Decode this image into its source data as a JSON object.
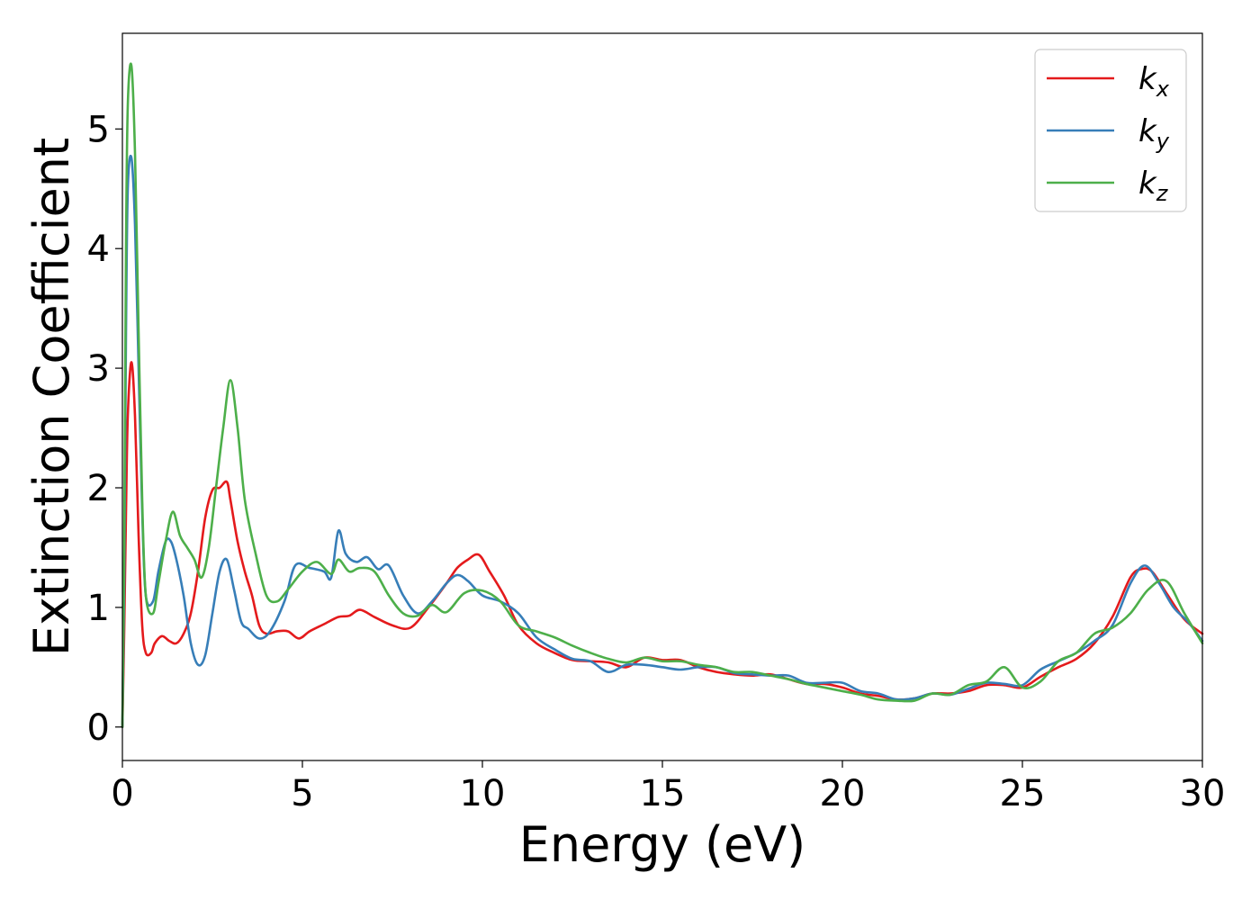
{
  "chart_data": {
    "type": "line",
    "title": "",
    "xlabel": "Energy (eV)",
    "ylabel": "Extinction Coefficient",
    "xlim": [
      0,
      30
    ],
    "ylim": [
      -0.28,
      5.8
    ],
    "xticks": [
      0,
      5,
      10,
      15,
      20,
      25,
      30
    ],
    "yticks": [
      0,
      1,
      2,
      3,
      4,
      5
    ],
    "grid": false,
    "legend_position": "top-right",
    "series": [
      {
        "name": "k",
        "subscript": "x",
        "color": "#e41a1c",
        "x": [
          0,
          0.05,
          0.1,
          0.15,
          0.25,
          0.35,
          0.45,
          0.55,
          0.65,
          0.8,
          0.9,
          1.1,
          1.3,
          1.5,
          1.7,
          1.9,
          2.1,
          2.3,
          2.5,
          2.7,
          2.9,
          3.0,
          3.2,
          3.4,
          3.6,
          3.8,
          4.0,
          4.3,
          4.6,
          4.9,
          5.2,
          5.6,
          6.0,
          6.3,
          6.6,
          7.0,
          7.5,
          8.0,
          8.5,
          9.0,
          9.3,
          9.6,
          9.9,
          10.2,
          10.6,
          11.0,
          11.5,
          12.0,
          12.5,
          13.0,
          13.5,
          14.0,
          14.5,
          15.0,
          15.5,
          16.0,
          16.5,
          17.0,
          17.5,
          18.0,
          18.5,
          19.0,
          19.5,
          20.0,
          20.5,
          21.0,
          21.5,
          22.0,
          22.5,
          23.0,
          23.5,
          24.0,
          24.5,
          25.0,
          25.5,
          26.0,
          26.5,
          27.0,
          27.5,
          28.0,
          28.3,
          28.6,
          29.0,
          29.5,
          30.0
        ],
        "y": [
          0,
          0.8,
          1.8,
          2.6,
          3.05,
          2.6,
          1.6,
          0.85,
          0.62,
          0.62,
          0.7,
          0.76,
          0.72,
          0.7,
          0.78,
          0.95,
          1.3,
          1.75,
          1.98,
          2.0,
          2.05,
          1.9,
          1.55,
          1.3,
          1.1,
          0.85,
          0.78,
          0.8,
          0.8,
          0.74,
          0.8,
          0.86,
          0.92,
          0.93,
          0.98,
          0.92,
          0.85,
          0.83,
          1.0,
          1.2,
          1.33,
          1.4,
          1.44,
          1.3,
          1.1,
          0.85,
          0.7,
          0.62,
          0.56,
          0.55,
          0.54,
          0.5,
          0.58,
          0.56,
          0.56,
          0.5,
          0.46,
          0.44,
          0.43,
          0.44,
          0.4,
          0.36,
          0.36,
          0.33,
          0.28,
          0.26,
          0.23,
          0.24,
          0.28,
          0.28,
          0.3,
          0.35,
          0.35,
          0.33,
          0.42,
          0.5,
          0.57,
          0.7,
          0.92,
          1.25,
          1.32,
          1.3,
          1.12,
          0.9,
          0.78
        ]
      },
      {
        "name": "k",
        "subscript": "y",
        "color": "#377eb8",
        "x": [
          0,
          0.05,
          0.1,
          0.15,
          0.25,
          0.35,
          0.45,
          0.55,
          0.65,
          0.85,
          1.0,
          1.2,
          1.35,
          1.5,
          1.7,
          1.9,
          2.1,
          2.3,
          2.5,
          2.7,
          2.9,
          3.1,
          3.3,
          3.5,
          3.8,
          4.1,
          4.5,
          4.8,
          5.2,
          5.6,
          5.8,
          6.0,
          6.2,
          6.5,
          6.8,
          7.1,
          7.4,
          7.8,
          8.2,
          8.6,
          9.0,
          9.3,
          9.6,
          10.0,
          10.5,
          11.0,
          11.5,
          12.0,
          12.5,
          13.0,
          13.5,
          14.0,
          14.5,
          15.0,
          15.5,
          16.0,
          16.5,
          17.0,
          17.5,
          18.0,
          18.5,
          19.0,
          19.5,
          20.0,
          20.5,
          21.0,
          21.5,
          22.0,
          22.5,
          23.0,
          23.5,
          24.0,
          24.5,
          25.0,
          25.5,
          26.0,
          26.5,
          27.0,
          27.5,
          28.0,
          28.4,
          28.8,
          29.2,
          29.6,
          30.0
        ],
        "y": [
          0,
          1.2,
          3.3,
          4.5,
          4.76,
          4.2,
          3.0,
          1.8,
          1.1,
          1.05,
          1.3,
          1.55,
          1.55,
          1.4,
          1.1,
          0.7,
          0.52,
          0.6,
          0.95,
          1.3,
          1.4,
          1.15,
          0.88,
          0.82,
          0.74,
          0.8,
          1.05,
          1.35,
          1.33,
          1.3,
          1.25,
          1.64,
          1.45,
          1.38,
          1.42,
          1.32,
          1.35,
          1.1,
          0.95,
          1.05,
          1.2,
          1.27,
          1.22,
          1.1,
          1.05,
          0.95,
          0.75,
          0.65,
          0.57,
          0.55,
          0.46,
          0.52,
          0.52,
          0.5,
          0.48,
          0.5,
          0.5,
          0.45,
          0.44,
          0.43,
          0.43,
          0.37,
          0.37,
          0.37,
          0.3,
          0.28,
          0.23,
          0.24,
          0.28,
          0.27,
          0.32,
          0.37,
          0.36,
          0.35,
          0.48,
          0.55,
          0.62,
          0.72,
          0.85,
          1.2,
          1.35,
          1.2,
          1.0,
          0.88,
          0.72
        ]
      },
      {
        "name": "k",
        "subscript": "z",
        "color": "#4daf4a",
        "x": [
          0,
          0.05,
          0.1,
          0.15,
          0.25,
          0.35,
          0.45,
          0.55,
          0.65,
          0.85,
          1.0,
          1.2,
          1.4,
          1.6,
          1.8,
          2.0,
          2.2,
          2.4,
          2.6,
          2.8,
          3.0,
          3.2,
          3.4,
          3.7,
          4.0,
          4.3,
          4.6,
          5.0,
          5.4,
          5.8,
          6.0,
          6.3,
          6.6,
          7.0,
          7.4,
          7.8,
          8.2,
          8.6,
          9.0,
          9.5,
          10.0,
          10.5,
          11.0,
          11.5,
          12.0,
          12.5,
          13.0,
          13.5,
          14.0,
          14.5,
          15.0,
          15.5,
          16.0,
          16.5,
          17.0,
          17.5,
          18.0,
          18.5,
          19.0,
          19.5,
          20.0,
          20.5,
          21.0,
          21.5,
          22.0,
          22.5,
          23.0,
          23.5,
          24.0,
          24.5,
          25.0,
          25.5,
          26.0,
          26.5,
          27.0,
          27.5,
          28.0,
          28.5,
          29.0,
          29.5,
          30.0
        ],
        "y": [
          0,
          1.5,
          4.0,
          5.2,
          5.53,
          4.8,
          3.3,
          1.9,
          1.1,
          0.95,
          1.2,
          1.55,
          1.8,
          1.6,
          1.5,
          1.4,
          1.25,
          1.5,
          2.0,
          2.5,
          2.9,
          2.5,
          1.9,
          1.45,
          1.1,
          1.05,
          1.15,
          1.3,
          1.38,
          1.28,
          1.4,
          1.3,
          1.33,
          1.3,
          1.1,
          0.95,
          0.93,
          1.02,
          0.96,
          1.12,
          1.14,
          1.05,
          0.85,
          0.8,
          0.75,
          0.68,
          0.62,
          0.57,
          0.54,
          0.58,
          0.55,
          0.55,
          0.52,
          0.5,
          0.46,
          0.46,
          0.43,
          0.4,
          0.36,
          0.33,
          0.3,
          0.27,
          0.23,
          0.22,
          0.22,
          0.28,
          0.27,
          0.35,
          0.38,
          0.5,
          0.33,
          0.38,
          0.55,
          0.62,
          0.78,
          0.83,
          0.95,
          1.15,
          1.22,
          0.95,
          0.7
        ]
      }
    ]
  }
}
